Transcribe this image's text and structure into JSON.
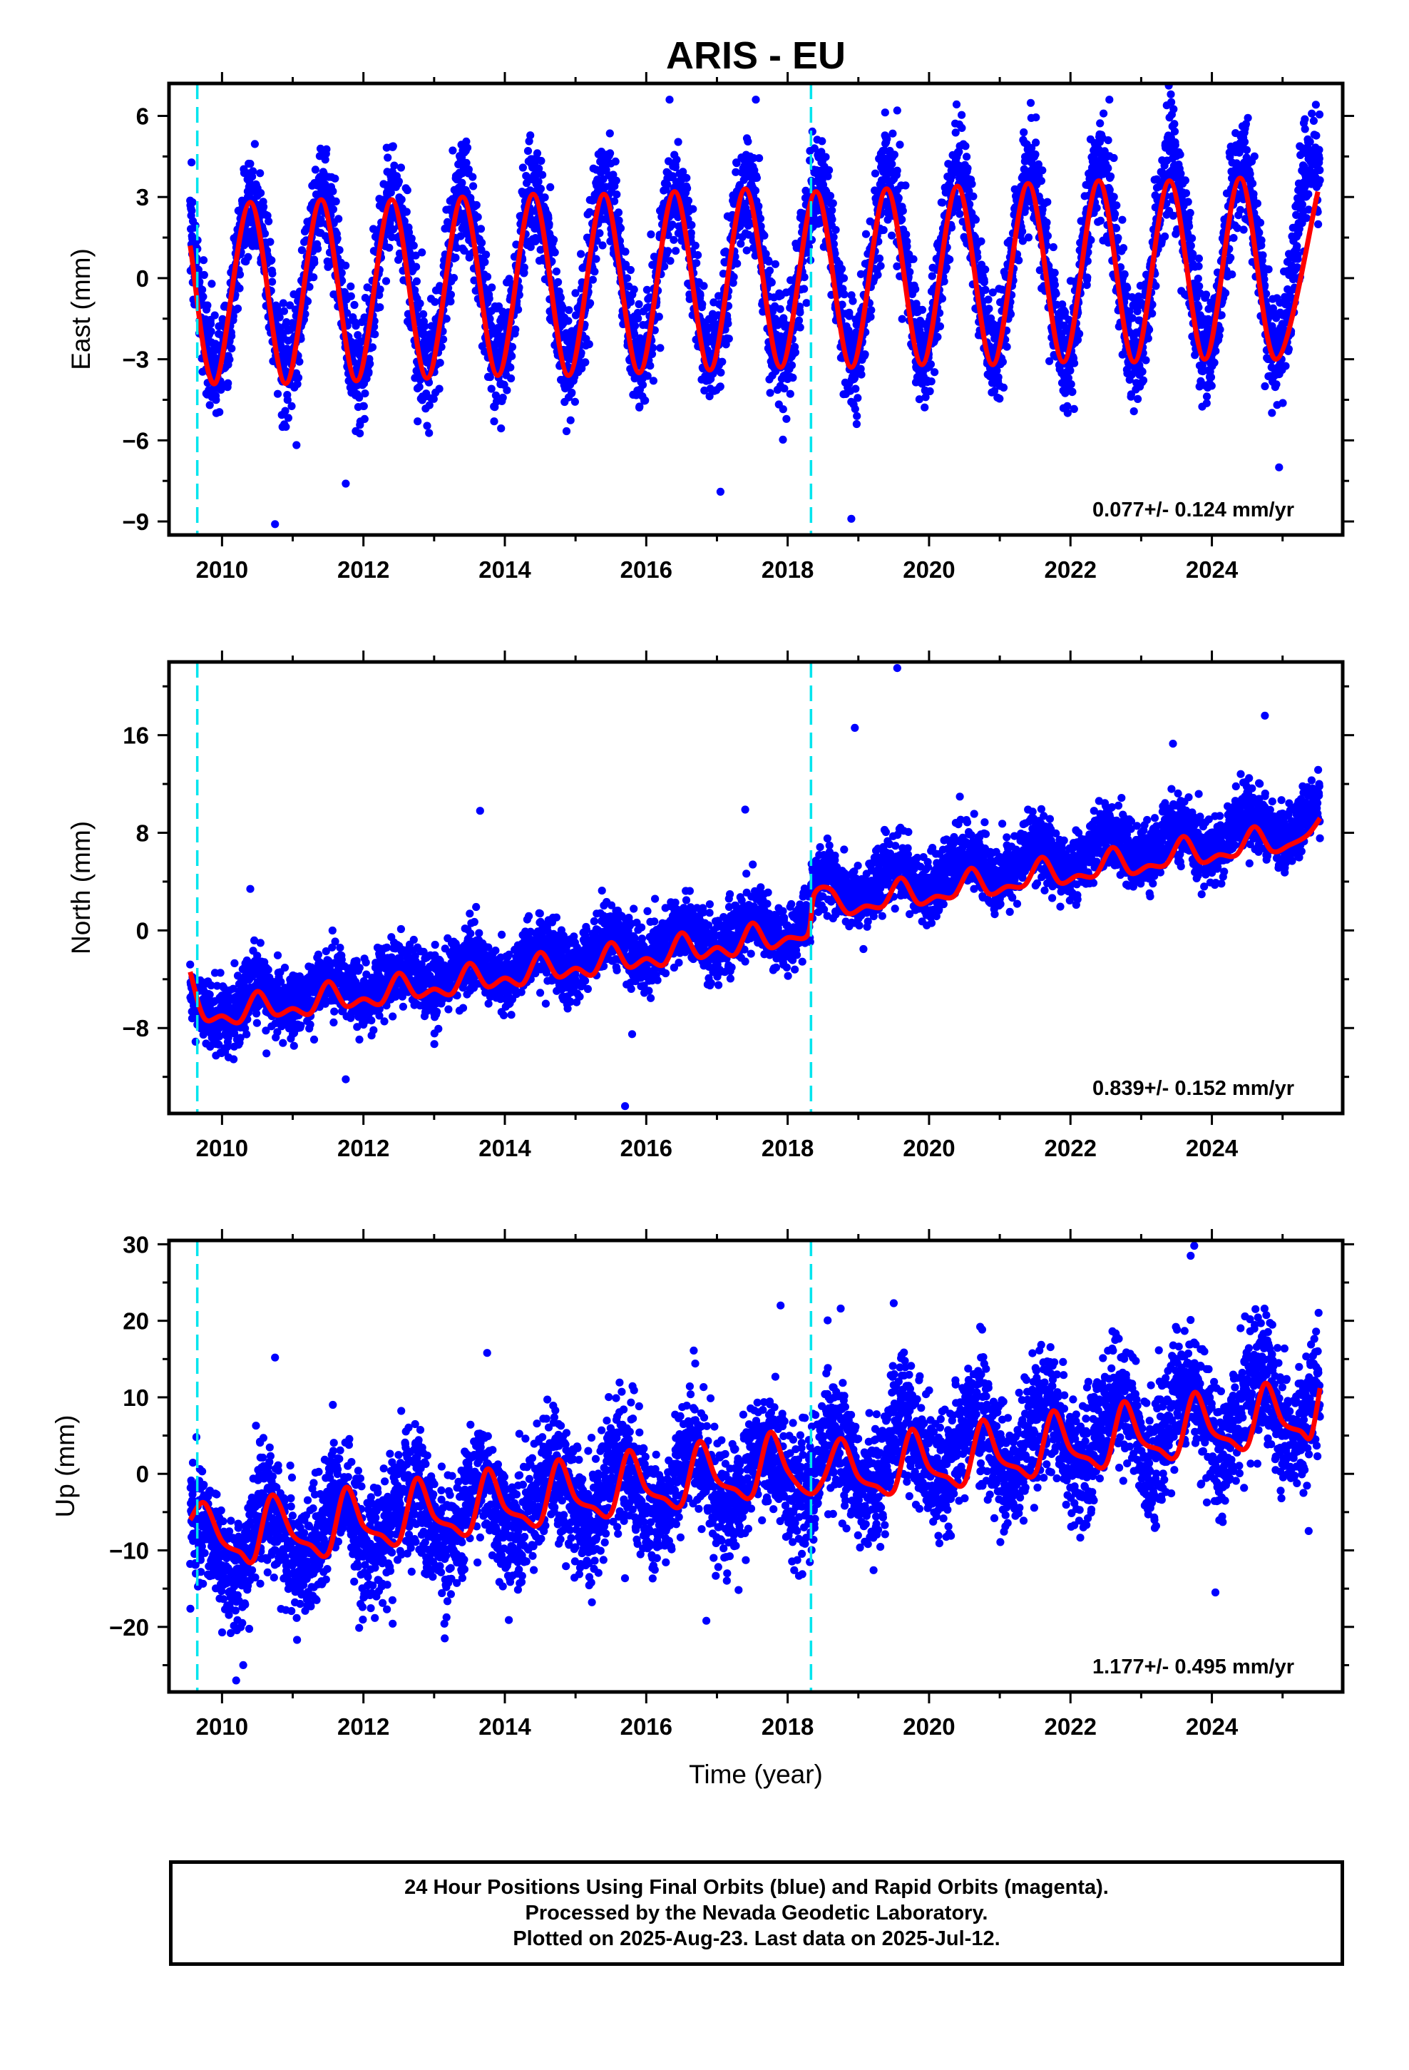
{
  "title": "ARIS - EU",
  "colors": {
    "points": "#0000ff",
    "fit": "#ff0000",
    "breaks": "#00e5ee",
    "axes": "#000000"
  },
  "footer": {
    "lines": [
      "24 Hour Positions Using Final Orbits (blue) and Rapid Orbits (magenta).",
      "Processed by the Nevada Geodetic Laboratory.",
      "Plotted on 2025-Aug-23. Last data on 2025-Jul-12."
    ]
  },
  "chart_data": [
    {
      "type": "scatter",
      "panel": "east",
      "ylabel": "East (mm)",
      "xlabel": "",
      "xlim": [
        2009.25,
        2025.85
      ],
      "ylim": [
        -9.5,
        7.2
      ],
      "xticks": [
        2010,
        2012,
        2014,
        2016,
        2018,
        2020,
        2022,
        2024
      ],
      "yticks": [
        -9,
        -6,
        -3,
        0,
        3,
        6
      ],
      "ytick_labels": [
        "−9",
        "−6",
        "−3",
        "0",
        "3",
        "6"
      ],
      "rate_label": "0.077+/- 0.124 mm/yr",
      "breaks": [
        2009.65,
        2018.33
      ],
      "data_range": [
        2009.55,
        2025.53
      ],
      "model": {
        "offset": -0.35,
        "trend": 0.077,
        "amp_annual": 3.1,
        "amp_annual_end": 3.6,
        "phase_peak": 0.42,
        "step": 0
      },
      "noise_sd": 1.0,
      "outliers": [
        [
          2010.75,
          -9.1
        ],
        [
          2017.05,
          -7.9
        ],
        [
          2011.75,
          -7.6
        ],
        [
          2018.9,
          -8.9
        ],
        [
          2016.33,
          6.6
        ],
        [
          2017.55,
          6.6
        ],
        [
          2023.42,
          6.8
        ],
        [
          2022.55,
          6.6
        ],
        [
          2019.55,
          6.2
        ],
        [
          2024.95,
          -7.0
        ]
      ],
      "fit_points": [
        [
          2009.55,
          1.2
        ],
        [
          2009.9,
          -3.9
        ],
        [
          2010.4,
          2.8
        ],
        [
          2010.9,
          -3.9
        ],
        [
          2011.4,
          2.9
        ],
        [
          2011.9,
          -3.8
        ],
        [
          2012.4,
          2.9
        ],
        [
          2012.9,
          -3.7
        ],
        [
          2013.4,
          3.0
        ],
        [
          2013.9,
          -3.6
        ],
        [
          2014.4,
          3.1
        ],
        [
          2014.9,
          -3.6
        ],
        [
          2015.4,
          3.1
        ],
        [
          2015.9,
          -3.5
        ],
        [
          2016.4,
          3.2
        ],
        [
          2016.9,
          -3.4
        ],
        [
          2017.4,
          3.3
        ],
        [
          2017.9,
          -3.3
        ],
        [
          2018.4,
          3.2
        ],
        [
          2018.9,
          -3.3
        ],
        [
          2019.4,
          3.3
        ],
        [
          2019.9,
          -3.2
        ],
        [
          2020.4,
          3.4
        ],
        [
          2020.9,
          -3.2
        ],
        [
          2021.4,
          3.5
        ],
        [
          2021.9,
          -3.1
        ],
        [
          2022.4,
          3.6
        ],
        [
          2022.9,
          -3.1
        ],
        [
          2023.4,
          3.6
        ],
        [
          2023.9,
          -3.0
        ],
        [
          2024.4,
          3.7
        ],
        [
          2024.9,
          -3.0
        ],
        [
          2025.5,
          3.2
        ]
      ]
    },
    {
      "type": "scatter",
      "panel": "north",
      "ylabel": "North (mm)",
      "xlabel": "",
      "xlim": [
        2009.25,
        2025.85
      ],
      "ylim": [
        -15,
        22
      ],
      "xticks": [
        2010,
        2012,
        2014,
        2016,
        2018,
        2020,
        2022,
        2024
      ],
      "yticks": [
        -8,
        0,
        8,
        16
      ],
      "ytick_labels": [
        "−8",
        "0",
        "8",
        "16"
      ],
      "rate_label": "0.839+/- 0.152 mm/yr",
      "breaks": [
        2009.65,
        2018.33
      ],
      "data_range": [
        2009.55,
        2025.53
      ],
      "model": {
        "offset": -6.6,
        "trend": 0.839,
        "amp_annual": 1.0,
        "amp_annual_end": 1.3,
        "phase_peak": 0.5,
        "step": 2.3
      },
      "noise_sd": 1.3,
      "outliers": [
        [
          2019.55,
          21.5
        ],
        [
          2018.95,
          16.6
        ],
        [
          2024.75,
          17.6
        ],
        [
          2023.45,
          15.3
        ],
        [
          2013.65,
          9.8
        ],
        [
          2015.7,
          -14.4
        ],
        [
          2011.75,
          -12.2
        ],
        [
          2015.8,
          -8.5
        ],
        [
          2010.4,
          3.4
        ],
        [
          2017.4,
          9.9
        ]
      ],
      "fit_points": [
        [
          2009.55,
          -3.4
        ],
        [
          2009.75,
          -7.2
        ],
        [
          2010.0,
          -7.0
        ],
        [
          2010.25,
          -7.5
        ],
        [
          2010.5,
          -5.0
        ],
        [
          2010.75,
          -6.9
        ],
        [
          2011.0,
          -6.4
        ],
        [
          2011.25,
          -6.8
        ],
        [
          2011.5,
          -4.2
        ],
        [
          2011.75,
          -6.2
        ],
        [
          2012.0,
          -5.6
        ],
        [
          2012.25,
          -6.0
        ],
        [
          2012.5,
          -3.5
        ],
        [
          2012.75,
          -5.4
        ],
        [
          2013.0,
          -4.8
        ],
        [
          2013.25,
          -5.2
        ],
        [
          2013.5,
          -2.7
        ],
        [
          2013.75,
          -4.6
        ],
        [
          2014.0,
          -3.9
        ],
        [
          2014.25,
          -4.4
        ],
        [
          2014.5,
          -1.8
        ],
        [
          2014.75,
          -3.8
        ],
        [
          2015.0,
          -3.1
        ],
        [
          2015.25,
          -3.6
        ],
        [
          2015.5,
          -1.0
        ],
        [
          2015.75,
          -3.0
        ],
        [
          2016.0,
          -2.3
        ],
        [
          2016.25,
          -2.8
        ],
        [
          2016.5,
          -0.2
        ],
        [
          2016.75,
          -2.2
        ],
        [
          2017.0,
          -1.4
        ],
        [
          2017.25,
          -2.0
        ],
        [
          2017.5,
          0.6
        ],
        [
          2017.75,
          -1.4
        ],
        [
          2018.0,
          -0.6
        ],
        [
          2018.28,
          -0.4
        ],
        [
          2018.38,
          3.0
        ],
        [
          2018.6,
          3.4
        ],
        [
          2018.85,
          1.4
        ],
        [
          2019.1,
          2.0
        ],
        [
          2019.35,
          2.0
        ],
        [
          2019.6,
          4.3
        ],
        [
          2019.85,
          2.2
        ],
        [
          2020.1,
          2.8
        ],
        [
          2020.35,
          2.8
        ],
        [
          2020.6,
          5.1
        ],
        [
          2020.85,
          3.0
        ],
        [
          2021.1,
          3.6
        ],
        [
          2021.35,
          3.7
        ],
        [
          2021.6,
          6.0
        ],
        [
          2021.85,
          3.9
        ],
        [
          2022.1,
          4.5
        ],
        [
          2022.35,
          4.5
        ],
        [
          2022.6,
          6.8
        ],
        [
          2022.85,
          4.7
        ],
        [
          2023.1,
          5.3
        ],
        [
          2023.35,
          5.4
        ],
        [
          2023.6,
          7.7
        ],
        [
          2023.85,
          5.6
        ],
        [
          2024.1,
          6.2
        ],
        [
          2024.35,
          6.2
        ],
        [
          2024.6,
          8.5
        ],
        [
          2024.85,
          6.5
        ],
        [
          2025.1,
          7.0
        ],
        [
          2025.35,
          7.8
        ],
        [
          2025.53,
          9.2
        ]
      ]
    },
    {
      "type": "scatter",
      "panel": "up",
      "ylabel": "Up (mm)",
      "xlabel": "Time (year)",
      "xlim": [
        2009.25,
        2025.85
      ],
      "ylim": [
        -28.5,
        30.5
      ],
      "xticks": [
        2010,
        2012,
        2014,
        2016,
        2018,
        2020,
        2022,
        2024
      ],
      "yticks": [
        -20,
        -10,
        0,
        10,
        20,
        30
      ],
      "ytick_labels": [
        "−20",
        "−10",
        "0",
        "10",
        "20",
        "30"
      ],
      "rate_label": "1.177+/- 0.495 mm/yr",
      "breaks": [
        2009.65,
        2018.33
      ],
      "data_range": [
        2009.55,
        2025.53
      ],
      "model": {
        "offset": -9.5,
        "trend": 1.177,
        "amp_annual": 4.0,
        "amp_annual_end": 4.5,
        "phase_peak": 0.65,
        "step": 0
      },
      "noise_sd": 4.0,
      "outliers": [
        [
          2023.75,
          29.8
        ],
        [
          2023.7,
          28.5
        ],
        [
          2017.9,
          22.0
        ],
        [
          2019.5,
          22.3
        ],
        [
          2018.75,
          21.6
        ],
        [
          2010.2,
          -27.0
        ],
        [
          2010.3,
          -25.0
        ],
        [
          2013.15,
          -21.5
        ],
        [
          2016.85,
          -19.2
        ],
        [
          2024.05,
          -15.5
        ],
        [
          2013.75,
          15.8
        ],
        [
          2010.75,
          15.2
        ]
      ],
      "fit_points": [
        [
          2009.55,
          -6.0
        ],
        [
          2009.75,
          -3.8
        ],
        [
          2010.0,
          -8.8
        ],
        [
          2010.25,
          -10.2
        ],
        [
          2010.45,
          -11.2
        ],
        [
          2010.7,
          -2.8
        ],
        [
          2011.0,
          -8.0
        ],
        [
          2011.25,
          -9.3
        ],
        [
          2011.5,
          -10.4
        ],
        [
          2011.75,
          -1.8
        ],
        [
          2012.0,
          -6.8
        ],
        [
          2012.25,
          -8.0
        ],
        [
          2012.5,
          -8.9
        ],
        [
          2012.75,
          -0.6
        ],
        [
          2013.0,
          -5.6
        ],
        [
          2013.25,
          -6.8
        ],
        [
          2013.5,
          -7.6
        ],
        [
          2013.75,
          0.6
        ],
        [
          2014.0,
          -4.4
        ],
        [
          2014.25,
          -5.6
        ],
        [
          2014.5,
          -6.4
        ],
        [
          2014.75,
          1.8
        ],
        [
          2015.0,
          -3.2
        ],
        [
          2015.25,
          -4.4
        ],
        [
          2015.5,
          -5.2
        ],
        [
          2015.75,
          3.0
        ],
        [
          2016.0,
          -2.0
        ],
        [
          2016.25,
          -3.2
        ],
        [
          2016.5,
          -4.0
        ],
        [
          2016.75,
          4.2
        ],
        [
          2017.0,
          -0.8
        ],
        [
          2017.25,
          -2.0
        ],
        [
          2017.5,
          -2.8
        ],
        [
          2017.75,
          5.4
        ],
        [
          2018.0,
          0.4
        ],
        [
          2018.3,
          -2.6
        ],
        [
          2018.5,
          -0.8
        ],
        [
          2018.75,
          4.6
        ],
        [
          2019.0,
          -0.4
        ],
        [
          2019.25,
          -1.6
        ],
        [
          2019.5,
          -2.2
        ],
        [
          2019.75,
          5.8
        ],
        [
          2020.0,
          0.8
        ],
        [
          2020.25,
          -0.4
        ],
        [
          2020.5,
          -1.2
        ],
        [
          2020.75,
          7.0
        ],
        [
          2021.0,
          2.0
        ],
        [
          2021.25,
          0.8
        ],
        [
          2021.5,
          0.0
        ],
        [
          2021.75,
          8.2
        ],
        [
          2022.0,
          3.2
        ],
        [
          2022.25,
          2.0
        ],
        [
          2022.5,
          1.2
        ],
        [
          2022.75,
          9.4
        ],
        [
          2023.0,
          4.4
        ],
        [
          2023.25,
          3.2
        ],
        [
          2023.5,
          2.4
        ],
        [
          2023.75,
          10.6
        ],
        [
          2024.0,
          5.6
        ],
        [
          2024.25,
          4.4
        ],
        [
          2024.5,
          3.6
        ],
        [
          2024.75,
          11.8
        ],
        [
          2025.0,
          6.8
        ],
        [
          2025.25,
          5.6
        ],
        [
          2025.4,
          4.9
        ],
        [
          2025.53,
          11.2
        ]
      ]
    }
  ]
}
